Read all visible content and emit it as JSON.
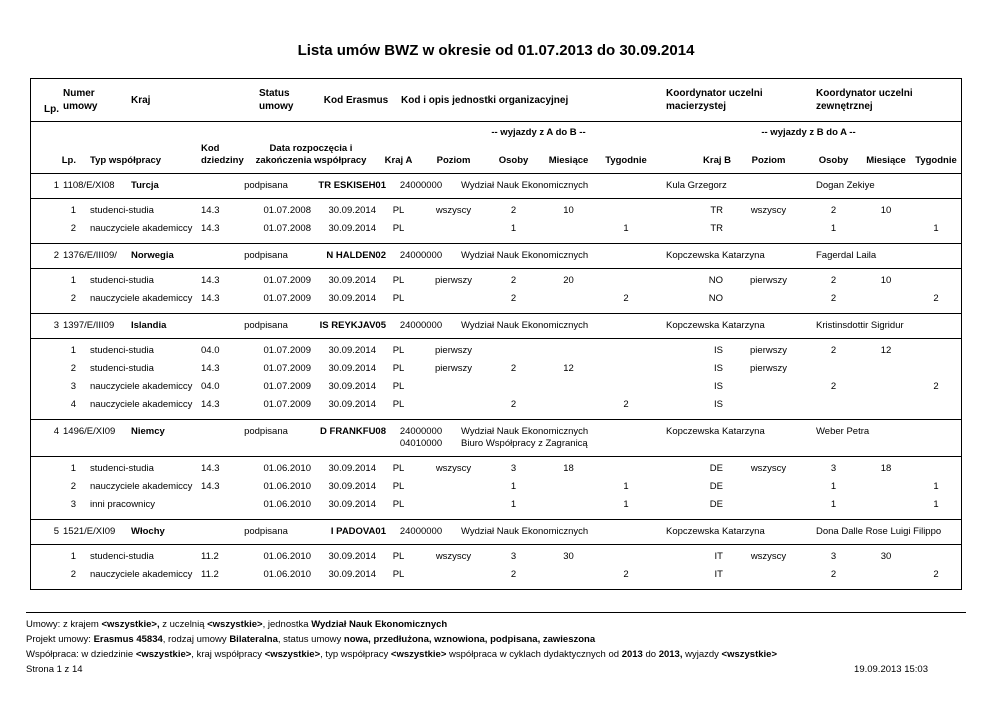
{
  "title": "Lista umów BWZ w okresie od 01.07.2013 do 30.09.2014",
  "table": {
    "header": {
      "lp": "Lp.",
      "numer": "Numer umowy",
      "kraj": "Kraj",
      "status": "Status umowy",
      "kod_erasmus": "Kod Erasmus",
      "jednostka": "Kod i opis jednostki organizacyjnej",
      "koord_mac": "Koordynator uczelni macierzystej",
      "koord_zew": "Koordynator uczelni zewnętrznej"
    },
    "subheader": {
      "lp": "Lp.",
      "typ": "Typ współpracy",
      "kod_dziedziny": "Kod dziedziny",
      "data": "Data rozpoczęcia i zakończenia współpracy",
      "wyjazdy_ab": "-- wyjazdy z A do B --",
      "wyjazdy_ba": "-- wyjazdy z B do A  --",
      "kraj_a": "Kraj A",
      "kraj_b": "Kraj B",
      "poziom": "Poziom",
      "osoby": "Osoby",
      "miesiace": "Miesiące",
      "tygodnie": "Tygodnie"
    },
    "groups": [
      {
        "lp": "1",
        "numer": "1108/E/XI08",
        "kraj": "Turcja",
        "status": "podpisana",
        "kod_erasmus": "TR ESKISEH01",
        "jednostki": [
          {
            "kod": "24000000",
            "opis": "Wydział Nauk Ekonomicznych"
          }
        ],
        "koord_mac": "Kula Grzegorz",
        "koord_zew": "Dogan Zekiye",
        "rows": [
          {
            "lp": "1",
            "typ": "studenci-studia",
            "kod": "14.3",
            "od": "01.07.2008",
            "do": "30.09.2014",
            "kraj_a": "PL",
            "poziom_a": "wszyscy",
            "osoby_a": "2",
            "miesiace_a": "10",
            "tygodnie_a": "",
            "kraj_b": "TR",
            "poziom_b": "wszyscy",
            "osoby_b": "2",
            "miesiace_b": "10",
            "tygodnie_b": ""
          },
          {
            "lp": "2",
            "typ": "nauczyciele akademiccy",
            "kod": "14.3",
            "od": "01.07.2008",
            "do": "30.09.2014",
            "kraj_a": "PL",
            "poziom_a": "",
            "osoby_a": "1",
            "miesiace_a": "",
            "tygodnie_a": "1",
            "kraj_b": "TR",
            "poziom_b": "",
            "osoby_b": "1",
            "miesiace_b": "",
            "tygodnie_b": "1"
          }
        ]
      },
      {
        "lp": "2",
        "numer": "1376/E/III09/",
        "kraj": "Norwegia",
        "status": "podpisana",
        "kod_erasmus": "N HALDEN02",
        "jednostki": [
          {
            "kod": "24000000",
            "opis": "Wydział Nauk Ekonomicznych"
          }
        ],
        "koord_mac": "Kopczewska Katarzyna",
        "koord_zew": "Fagerdal Laila",
        "rows": [
          {
            "lp": "1",
            "typ": "studenci-studia",
            "kod": "14.3",
            "od": "01.07.2009",
            "do": "30.09.2014",
            "kraj_a": "PL",
            "poziom_a": "pierwszy",
            "osoby_a": "2",
            "miesiace_a": "20",
            "tygodnie_a": "",
            "kraj_b": "NO",
            "poziom_b": "pierwszy",
            "osoby_b": "2",
            "miesiace_b": "10",
            "tygodnie_b": ""
          },
          {
            "lp": "2",
            "typ": "nauczyciele akademiccy",
            "kod": "14.3",
            "od": "01.07.2009",
            "do": "30.09.2014",
            "kraj_a": "PL",
            "poziom_a": "",
            "osoby_a": "2",
            "miesiace_a": "",
            "tygodnie_a": "2",
            "kraj_b": "NO",
            "poziom_b": "",
            "osoby_b": "2",
            "miesiace_b": "",
            "tygodnie_b": "2"
          }
        ]
      },
      {
        "lp": "3",
        "numer": "1397/E/III09",
        "kraj": "Islandia",
        "status": "podpisana",
        "kod_erasmus": "IS REYKJAV05",
        "jednostki": [
          {
            "kod": "24000000",
            "opis": "Wydział Nauk Ekonomicznych"
          }
        ],
        "koord_mac": "Kopczewska Katarzyna",
        "koord_zew": "Kristinsdottir Sigridur",
        "rows": [
          {
            "lp": "1",
            "typ": "studenci-studia",
            "kod": "04.0",
            "od": "01.07.2009",
            "do": "30.09.2014",
            "kraj_a": "PL",
            "poziom_a": "pierwszy",
            "osoby_a": "",
            "miesiace_a": "",
            "tygodnie_a": "",
            "kraj_b": "IS",
            "poziom_b": "pierwszy",
            "osoby_b": "2",
            "miesiace_b": "12",
            "tygodnie_b": ""
          },
          {
            "lp": "2",
            "typ": "studenci-studia",
            "kod": "14.3",
            "od": "01.07.2009",
            "do": "30.09.2014",
            "kraj_a": "PL",
            "poziom_a": "pierwszy",
            "osoby_a": "2",
            "miesiace_a": "12",
            "tygodnie_a": "",
            "kraj_b": "IS",
            "poziom_b": "pierwszy",
            "osoby_b": "",
            "miesiace_b": "",
            "tygodnie_b": ""
          },
          {
            "lp": "3",
            "typ": "nauczyciele akademiccy",
            "kod": "04.0",
            "od": "01.07.2009",
            "do": "30.09.2014",
            "kraj_a": "PL",
            "poziom_a": "",
            "osoby_a": "",
            "miesiace_a": "",
            "tygodnie_a": "",
            "kraj_b": "IS",
            "poziom_b": "",
            "osoby_b": "2",
            "miesiace_b": "",
            "tygodnie_b": "2"
          },
          {
            "lp": "4",
            "typ": "nauczyciele akademiccy",
            "kod": "14.3",
            "od": "01.07.2009",
            "do": "30.09.2014",
            "kraj_a": "PL",
            "poziom_a": "",
            "osoby_a": "2",
            "miesiace_a": "",
            "tygodnie_a": "2",
            "kraj_b": "IS",
            "poziom_b": "",
            "osoby_b": "",
            "miesiace_b": "",
            "tygodnie_b": ""
          }
        ]
      },
      {
        "lp": "4",
        "numer": "1496/E/XI09",
        "kraj": "Niemcy",
        "status": "podpisana",
        "kod_erasmus": "D FRANKFU08",
        "jednostki": [
          {
            "kod": "24000000",
            "opis": "Wydział Nauk Ekonomicznych"
          },
          {
            "kod": "04010000",
            "opis": "Biuro Współpracy z Zagranicą"
          }
        ],
        "koord_mac": "Kopczewska Katarzyna",
        "koord_zew": "Weber Petra",
        "rows": [
          {
            "lp": "1",
            "typ": "studenci-studia",
            "kod": "14.3",
            "od": "01.06.2010",
            "do": "30.09.2014",
            "kraj_a": "PL",
            "poziom_a": "wszyscy",
            "osoby_a": "3",
            "miesiace_a": "18",
            "tygodnie_a": "",
            "kraj_b": "DE",
            "poziom_b": "wszyscy",
            "osoby_b": "3",
            "miesiace_b": "18",
            "tygodnie_b": ""
          },
          {
            "lp": "2",
            "typ": "nauczyciele akademiccy",
            "kod": "14.3",
            "od": "01.06.2010",
            "do": "30.09.2014",
            "kraj_a": "PL",
            "poziom_a": "",
            "osoby_a": "1",
            "miesiace_a": "",
            "tygodnie_a": "1",
            "kraj_b": "DE",
            "poziom_b": "",
            "osoby_b": "1",
            "miesiace_b": "",
            "tygodnie_b": "1"
          },
          {
            "lp": "3",
            "typ": "inni pracownicy",
            "kod": "",
            "od": "01.06.2010",
            "do": "30.09.2014",
            "kraj_a": "PL",
            "poziom_a": "",
            "osoby_a": "1",
            "miesiace_a": "",
            "tygodnie_a": "1",
            "kraj_b": "DE",
            "poziom_b": "",
            "osoby_b": "1",
            "miesiace_b": "",
            "tygodnie_b": "1"
          }
        ]
      },
      {
        "lp": "5",
        "numer": "1521/E/XI09",
        "kraj": "Włochy",
        "status": "podpisana",
        "kod_erasmus": "I PADOVA01",
        "jednostki": [
          {
            "kod": "24000000",
            "opis": "Wydział Nauk Ekonomicznych"
          }
        ],
        "koord_mac": "Kopczewska Katarzyna",
        "koord_zew": "Dona Dalle Rose Luigi Filippo",
        "rows": [
          {
            "lp": "1",
            "typ": "studenci-studia",
            "kod": "11.2",
            "od": "01.06.2010",
            "do": "30.09.2014",
            "kraj_a": "PL",
            "poziom_a": "wszyscy",
            "osoby_a": "3",
            "miesiace_a": "30",
            "tygodnie_a": "",
            "kraj_b": "IT",
            "poziom_b": "wszyscy",
            "osoby_b": "3",
            "miesiace_b": "30",
            "tygodnie_b": ""
          },
          {
            "lp": "2",
            "typ": "nauczyciele akademiccy",
            "kod": "11.2",
            "od": "01.06.2010",
            "do": "30.09.2014",
            "kraj_a": "PL",
            "poziom_a": "",
            "osoby_a": "2",
            "miesiace_a": "",
            "tygodnie_a": "2",
            "kraj_b": "IT",
            "poziom_b": "",
            "osoby_b": "2",
            "miesiace_b": "",
            "tygodnie_b": "2"
          }
        ]
      }
    ]
  },
  "footer": {
    "lines": [
      [
        {
          "t": "Umowy: z krajem "
        },
        {
          "t": "<wszystkie>,",
          "b": true
        },
        {
          "t": " z uczelnią "
        },
        {
          "t": "<wszystkie>",
          "b": true
        },
        {
          "t": ", jednostka "
        },
        {
          "t": "Wydział Nauk Ekonomicznych",
          "b": true
        }
      ],
      [
        {
          "t": "Projekt umowy: "
        },
        {
          "t": "Erasmus 45834",
          "b": true
        },
        {
          "t": ", rodzaj umowy "
        },
        {
          "t": "Bilateralna",
          "b": true
        },
        {
          "t": ", status umowy "
        },
        {
          "t": "nowa, przedłużona, wznowiona, podpisana, zawieszona",
          "b": true
        }
      ],
      [
        {
          "t": "Współpraca: w dziedzinie "
        },
        {
          "t": "<wszystkie>",
          "b": true
        },
        {
          "t": ", kraj współpracy "
        },
        {
          "t": "<wszystkie>",
          "b": true
        },
        {
          "t": ",  typ współpracy "
        },
        {
          "t": "<wszystkie>",
          "b": true
        },
        {
          "t": " współpraca w cyklach dydaktycznych od "
        },
        {
          "t": "2013",
          "b": true
        },
        {
          "t": " do "
        },
        {
          "t": "2013,",
          "b": true
        },
        {
          "t": " wyjazdy "
        },
        {
          "t": "<wszystkie>",
          "b": true
        }
      ]
    ],
    "page": "Strona 1 z 14",
    "timestamp": "19.09.2013 15:03"
  }
}
